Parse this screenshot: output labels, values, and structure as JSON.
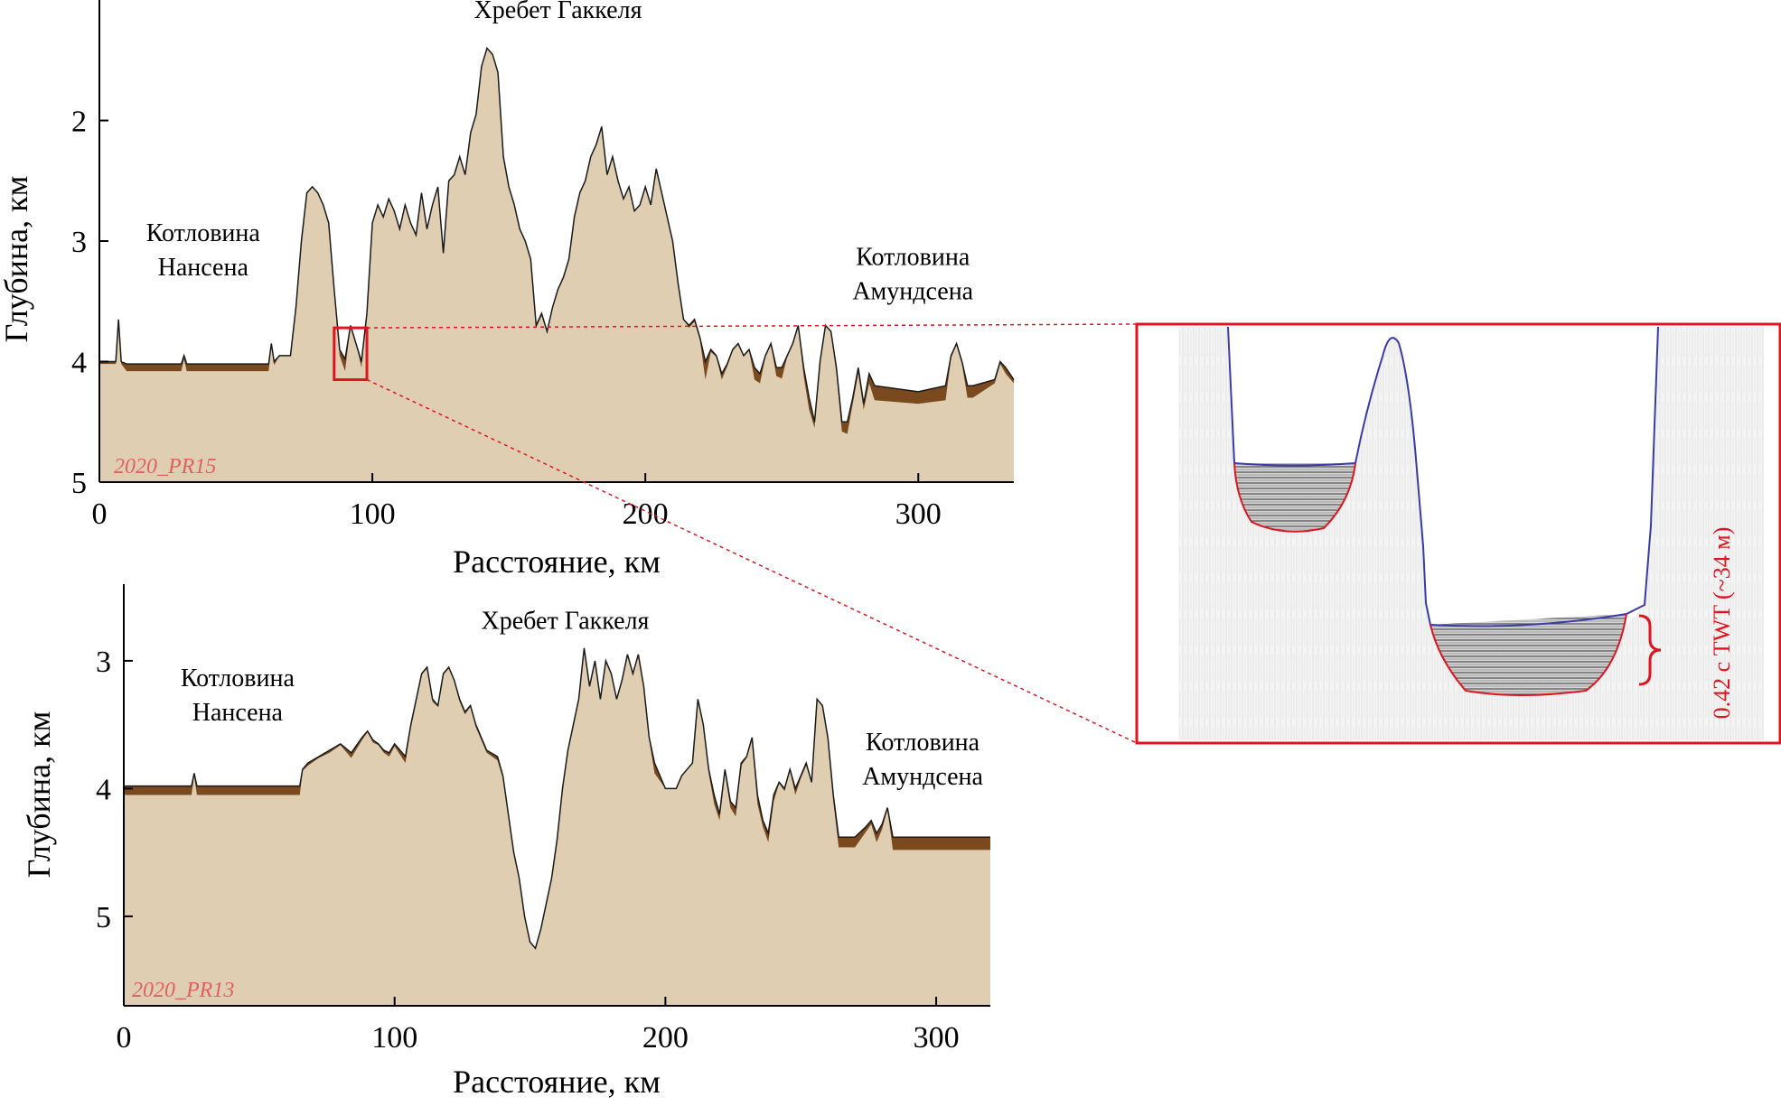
{
  "colors": {
    "seafloor_fill": "#e0ceb2",
    "sediment_fill": "#7a4a1e",
    "outline": "#1a1a1a",
    "highlight": "#e0141e",
    "seafloor_reflector": "#3a3aa8",
    "profile_tag": "#e06060"
  },
  "chart_data": [
    {
      "type": "area",
      "profile": "2020_PR15",
      "xlabel": "Расстояние, км",
      "ylabel": "Глубина, км",
      "xlim": [
        0,
        335
      ],
      "ylim": [
        5,
        1
      ],
      "y_inverted": true,
      "x_ticks": [
        0,
        100,
        200,
        300
      ],
      "y_ticks": [
        2,
        3,
        4,
        5
      ],
      "annotations": [
        {
          "text": [
            "Котловина",
            "Нансена"
          ],
          "x": 38,
          "y": 3.0
        },
        {
          "text": [
            "Хребет Гаккеля"
          ],
          "x": 168,
          "y": 1.15
        },
        {
          "text": [
            "Котловина",
            "Амундсена"
          ],
          "x": 298,
          "y": 3.2
        }
      ],
      "highlight_box": {
        "x": [
          86,
          98
        ],
        "y": [
          3.72,
          4.15
        ]
      },
      "series": [
        {
          "x": [
            0,
            6,
            7,
            8,
            10,
            30,
            31,
            32,
            62,
            63,
            64,
            66,
            70,
            72,
            74,
            76,
            78,
            80,
            82,
            84,
            86,
            88,
            90,
            92,
            94,
            96,
            98,
            100,
            102,
            104,
            106,
            108,
            110,
            112,
            114,
            116,
            118,
            120,
            122,
            124,
            126,
            128,
            130,
            132,
            134,
            136,
            138,
            140,
            142,
            144,
            146,
            148,
            150,
            152,
            154,
            156,
            158,
            160,
            162,
            164,
            166,
            168,
            170,
            172,
            174,
            176,
            178,
            180,
            182,
            184,
            186,
            188,
            190,
            192,
            194,
            196,
            198,
            200,
            202,
            204,
            206,
            208,
            210,
            212,
            214,
            216,
            218,
            220,
            222,
            224,
            226,
            228,
            230,
            232,
            234,
            236,
            238,
            240,
            242,
            244,
            246,
            248,
            250,
            252,
            254,
            256,
            258,
            260,
            262,
            264,
            266,
            268,
            270,
            272,
            274,
            276,
            278,
            280,
            282,
            284,
            300,
            310,
            312,
            314,
            316,
            318,
            320,
            328,
            330,
            332,
            335
          ],
          "seafloor": [
            4.0,
            4.0,
            3.65,
            4.0,
            4.02,
            4.02,
            3.95,
            4.02,
            4.02,
            3.85,
            4.0,
            3.95,
            3.95,
            3.55,
            3.0,
            2.6,
            2.55,
            2.6,
            2.7,
            2.85,
            3.4,
            3.9,
            3.98,
            3.7,
            3.85,
            4.0,
            3.6,
            2.85,
            2.7,
            2.8,
            2.65,
            2.75,
            2.9,
            2.7,
            2.85,
            2.95,
            2.6,
            2.9,
            2.7,
            2.55,
            3.1,
            2.5,
            2.45,
            2.3,
            2.45,
            2.1,
            1.95,
            1.55,
            1.4,
            1.45,
            1.6,
            2.3,
            2.55,
            2.7,
            2.9,
            3.0,
            3.15,
            3.7,
            3.6,
            3.75,
            3.55,
            3.4,
            3.3,
            3.15,
            2.8,
            2.6,
            2.5,
            2.3,
            2.2,
            2.05,
            2.45,
            2.3,
            2.5,
            2.65,
            2.55,
            2.75,
            2.7,
            2.55,
            2.7,
            2.4,
            2.6,
            2.8,
            3.0,
            3.35,
            3.65,
            3.7,
            3.65,
            3.8,
            4.0,
            3.9,
            3.95,
            4.1,
            4.02,
            3.9,
            3.85,
            3.95,
            3.9,
            4.05,
            4.1,
            3.95,
            3.85,
            4.05,
            4.05,
            3.95,
            3.85,
            3.7,
            4.05,
            4.3,
            4.5,
            4.0,
            3.7,
            3.75,
            4.05,
            4.5,
            4.5,
            4.3,
            4.05,
            4.35,
            4.1,
            4.2,
            4.25,
            4.2,
            3.95,
            3.85,
            4.0,
            4.2,
            4.2,
            4.15,
            4.0,
            4.05,
            4.15
          ],
          "sediment_base": [
            4.02,
            4.02,
            3.65,
            4.02,
            4.08,
            4.08,
            3.98,
            4.08,
            4.08,
            3.86,
            4.03,
            3.95,
            3.95,
            3.55,
            3.0,
            2.6,
            2.55,
            2.6,
            2.7,
            2.85,
            3.4,
            3.95,
            4.08,
            3.7,
            3.85,
            4.05,
            3.6,
            2.85,
            2.7,
            2.8,
            2.65,
            2.75,
            2.9,
            2.7,
            2.85,
            2.95,
            2.6,
            2.9,
            2.7,
            2.55,
            3.1,
            2.5,
            2.45,
            2.3,
            2.45,
            2.1,
            1.95,
            1.55,
            1.4,
            1.45,
            1.6,
            2.3,
            2.55,
            2.7,
            2.9,
            3.0,
            3.15,
            3.72,
            3.62,
            3.75,
            3.55,
            3.4,
            3.3,
            3.15,
            2.8,
            2.6,
            2.5,
            2.3,
            2.2,
            2.05,
            2.45,
            2.3,
            2.5,
            2.65,
            2.55,
            2.75,
            2.7,
            2.55,
            2.7,
            2.4,
            2.6,
            2.8,
            3.0,
            3.35,
            3.65,
            3.72,
            3.67,
            3.82,
            4.15,
            3.92,
            3.96,
            4.15,
            4.04,
            3.91,
            3.86,
            3.96,
            3.91,
            4.15,
            4.18,
            3.96,
            3.86,
            4.12,
            4.14,
            3.96,
            3.86,
            3.71,
            4.12,
            4.4,
            4.55,
            4.0,
            3.7,
            3.75,
            4.1,
            4.58,
            4.6,
            4.35,
            4.1,
            4.4,
            4.18,
            4.32,
            4.35,
            4.32,
            3.97,
            3.86,
            4.02,
            4.3,
            4.3,
            4.18,
            4.02,
            4.1,
            4.18
          ]
        }
      ]
    },
    {
      "type": "area",
      "profile": "2020_PR13",
      "xlabel": "Расстояние, км",
      "ylabel": "Глубина, км",
      "xlim": [
        0,
        320
      ],
      "ylim": [
        5.7,
        2.4
      ],
      "y_inverted": true,
      "x_ticks": [
        0,
        100,
        200,
        300
      ],
      "y_ticks": [
        3,
        4,
        5
      ],
      "annotations": [
        {
          "text": [
            "Котловина",
            "Нансена"
          ],
          "x": 42,
          "y": 3.2
        },
        {
          "text": [
            "Хребет Гаккеля"
          ],
          "x": 163,
          "y": 2.75
        },
        {
          "text": [
            "Котловина",
            "Амундсена"
          ],
          "x": 295,
          "y": 3.7
        }
      ],
      "series": [
        {
          "x": [
            0,
            25,
            26,
            27,
            65,
            66,
            68,
            72,
            76,
            80,
            84,
            88,
            90,
            92,
            94,
            96,
            98,
            100,
            104,
            106,
            108,
            110,
            112,
            114,
            116,
            118,
            120,
            122,
            124,
            126,
            128,
            130,
            134,
            138,
            140,
            142,
            144,
            146,
            148,
            150,
            152,
            154,
            156,
            158,
            160,
            162,
            164,
            166,
            168,
            170,
            172,
            174,
            176,
            178,
            180,
            182,
            184,
            186,
            188,
            190,
            192,
            194,
            196,
            198,
            200,
            204,
            206,
            208,
            210,
            212,
            214,
            216,
            218,
            220,
            222,
            224,
            226,
            228,
            230,
            232,
            234,
            236,
            238,
            240,
            242,
            244,
            246,
            248,
            250,
            252,
            254,
            256,
            258,
            260,
            262,
            264,
            270,
            274,
            276,
            278,
            280,
            282,
            284,
            300,
            320
          ],
          "seafloor": [
            3.98,
            3.98,
            3.88,
            3.98,
            3.98,
            3.85,
            3.8,
            3.75,
            3.7,
            3.65,
            3.72,
            3.6,
            3.55,
            3.62,
            3.65,
            3.7,
            3.72,
            3.65,
            3.75,
            3.5,
            3.3,
            3.1,
            3.05,
            3.3,
            3.35,
            3.1,
            3.05,
            3.15,
            3.3,
            3.4,
            3.35,
            3.5,
            3.7,
            3.75,
            3.9,
            4.2,
            4.5,
            4.7,
            5.0,
            5.2,
            5.25,
            5.1,
            4.9,
            4.7,
            4.4,
            4.0,
            3.7,
            3.5,
            3.3,
            2.9,
            3.2,
            3.0,
            3.3,
            3.0,
            3.1,
            3.3,
            3.15,
            2.95,
            3.1,
            2.95,
            3.2,
            3.6,
            3.8,
            3.9,
            4.0,
            4.0,
            3.9,
            3.85,
            3.8,
            3.3,
            3.5,
            3.85,
            4.05,
            4.2,
            3.85,
            4.1,
            4.15,
            3.8,
            3.75,
            3.6,
            4.05,
            4.25,
            4.35,
            4.05,
            3.95,
            4.0,
            3.85,
            4.0,
            3.9,
            3.8,
            3.95,
            3.3,
            3.35,
            3.6,
            4.05,
            4.38,
            4.38,
            4.3,
            4.25,
            4.35,
            4.28,
            4.15,
            4.38,
            4.38,
            4.38
          ],
          "sediment_base": [
            4.05,
            4.05,
            3.9,
            4.05,
            4.05,
            3.86,
            3.82,
            3.76,
            3.72,
            3.66,
            3.76,
            3.62,
            3.56,
            3.64,
            3.66,
            3.72,
            3.75,
            3.67,
            3.8,
            3.52,
            3.32,
            3.11,
            3.06,
            3.32,
            3.36,
            3.11,
            3.06,
            3.16,
            3.32,
            3.42,
            3.36,
            3.52,
            3.72,
            3.78,
            3.92,
            4.2,
            4.5,
            4.7,
            5.0,
            5.2,
            5.25,
            5.1,
            4.9,
            4.7,
            4.4,
            4.0,
            3.7,
            3.5,
            3.3,
            2.9,
            3.2,
            3.0,
            3.3,
            3.0,
            3.1,
            3.3,
            3.15,
            2.95,
            3.1,
            2.95,
            3.2,
            3.62,
            3.88,
            3.94,
            4.0,
            4.0,
            3.9,
            3.85,
            3.8,
            3.3,
            3.5,
            3.88,
            4.12,
            4.25,
            3.88,
            4.15,
            4.22,
            3.82,
            3.76,
            3.62,
            4.12,
            4.3,
            4.42,
            4.1,
            3.96,
            4.02,
            3.86,
            4.05,
            3.92,
            3.82,
            3.96,
            3.3,
            3.35,
            3.62,
            4.1,
            4.46,
            4.46,
            4.34,
            4.28,
            4.42,
            4.32,
            4.16,
            4.48,
            4.48,
            4.48
          ]
        }
      ]
    }
  ],
  "inset": {
    "twt_label": "0.42 с TWT (~34 м)"
  }
}
